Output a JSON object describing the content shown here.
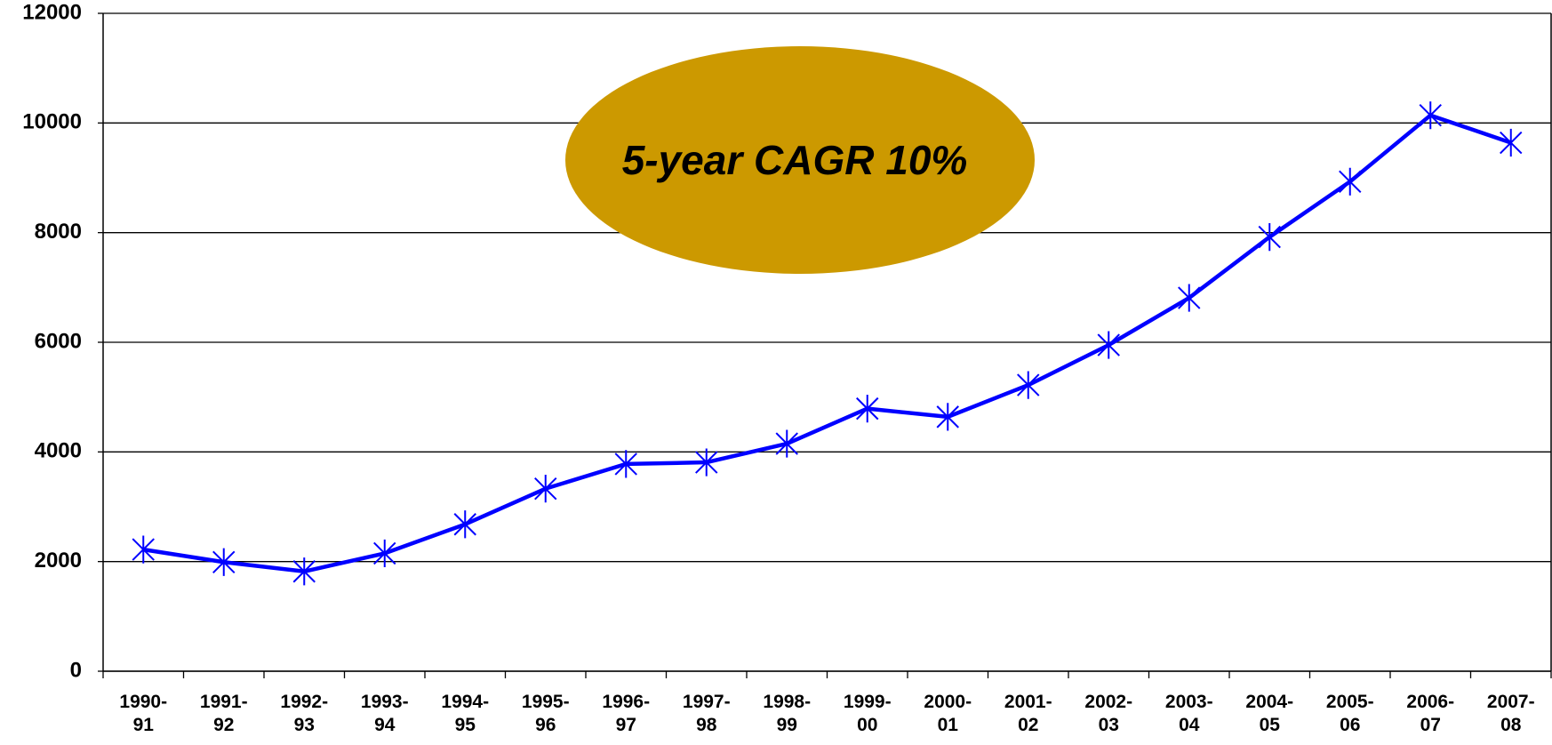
{
  "chart_data": {
    "type": "line",
    "categories": [
      "1990-91",
      "1991-92",
      "1992-93",
      "1993-94",
      "1994-95",
      "1995-96",
      "1996-97",
      "1997-98",
      "1998-99",
      "1999-00",
      "2000-01",
      "2001-02",
      "2002-03",
      "2003-04",
      "2004-05",
      "2005-06",
      "2006-07",
      "2007-08"
    ],
    "series": [
      {
        "color": "#0000ff",
        "values": [
          2220,
          1990,
          1820,
          2150,
          2680,
          3330,
          3780,
          3810,
          4150,
          4790,
          4640,
          5220,
          5950,
          6810,
          7920,
          8930,
          10140,
          9640
        ]
      }
    ],
    "ylim": [
      0,
      12000
    ],
    "yticks": [
      0,
      2000,
      4000,
      6000,
      8000,
      10000,
      12000
    ],
    "grid": true,
    "annotation": {
      "text": "5-year CAGR 10%",
      "color": "#cc9900"
    }
  }
}
